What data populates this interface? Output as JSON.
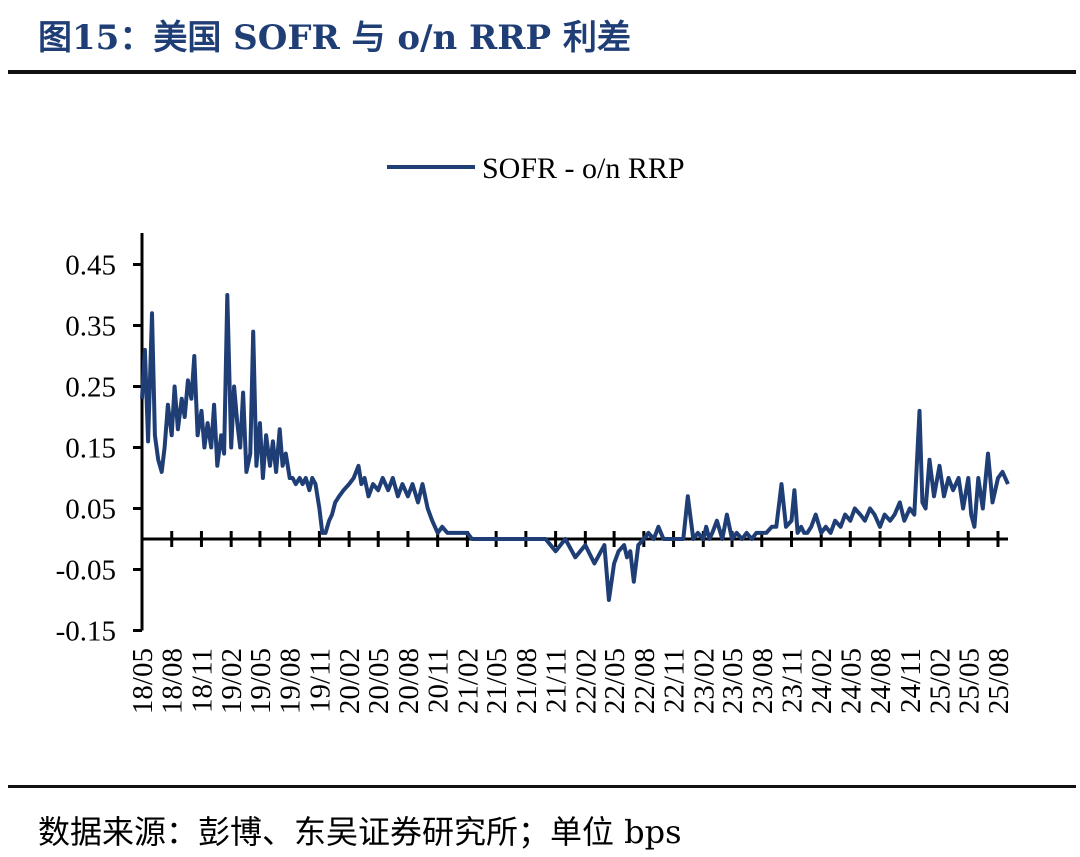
{
  "figure": {
    "title": "图15：美国 SOFR 与 o/n RRP 利差",
    "source": "数据来源：彭博、东吴证券研究所；单位 bps"
  },
  "chart_data": {
    "type": "line",
    "title": "",
    "xlabel": "",
    "ylabel": "",
    "ylim": [
      -0.15,
      0.5
    ],
    "y_ticks": [
      0.45,
      0.35,
      0.25,
      0.15,
      0.05,
      -0.05,
      -0.15
    ],
    "y_tick_labels": [
      "0.45",
      "0.35",
      "0.25",
      "0.15",
      "0.05",
      "-0.05",
      "-0.15"
    ],
    "x_range": [
      "2018-05",
      "2025-09"
    ],
    "x_tick_labels": [
      "18/05",
      "18/08",
      "18/11",
      "19/02",
      "19/05",
      "19/08",
      "19/11",
      "20/02",
      "20/05",
      "20/08",
      "20/11",
      "21/02",
      "21/05",
      "21/08",
      "21/11",
      "22/02",
      "22/05",
      "22/08",
      "22/11",
      "23/02",
      "23/05",
      "23/08",
      "23/11",
      "24/02",
      "24/05",
      "24/08",
      "24/11",
      "25/02",
      "25/05",
      "25/08"
    ],
    "legend_position": "top-center",
    "grid": false,
    "series_color": "#1f3e75",
    "series": [
      {
        "name": "SOFR - o/n RRP",
        "x": [
          "2018-05-01",
          "2018-05-10",
          "2018-05-20",
          "2018-06-01",
          "2018-06-10",
          "2018-06-20",
          "2018-07-01",
          "2018-07-10",
          "2018-07-20",
          "2018-08-01",
          "2018-08-10",
          "2018-08-20",
          "2018-09-01",
          "2018-09-10",
          "2018-09-20",
          "2018-10-01",
          "2018-10-10",
          "2018-10-20",
          "2018-11-01",
          "2018-11-10",
          "2018-11-20",
          "2018-12-01",
          "2018-12-10",
          "2018-12-20",
          "2019-01-01",
          "2019-01-10",
          "2019-01-20",
          "2019-02-01",
          "2019-02-10",
          "2019-02-20",
          "2019-03-01",
          "2019-03-10",
          "2019-03-20",
          "2019-04-01",
          "2019-04-10",
          "2019-04-20",
          "2019-05-01",
          "2019-05-10",
          "2019-05-20",
          "2019-06-01",
          "2019-06-10",
          "2019-06-20",
          "2019-07-01",
          "2019-07-10",
          "2019-07-20",
          "2019-08-01",
          "2019-08-10",
          "2019-08-20",
          "2019-09-01",
          "2019-09-10",
          "2019-09-20",
          "2019-10-01",
          "2019-10-10",
          "2019-10-20",
          "2019-11-01",
          "2019-11-10",
          "2019-11-20",
          "2019-12-01",
          "2019-12-10",
          "2019-12-20",
          "2020-01-01",
          "2020-01-15",
          "2020-02-01",
          "2020-02-15",
          "2020-03-01",
          "2020-03-10",
          "2020-03-20",
          "2020-04-01",
          "2020-04-15",
          "2020-05-01",
          "2020-05-15",
          "2020-06-01",
          "2020-06-15",
          "2020-07-01",
          "2020-07-15",
          "2020-08-01",
          "2020-08-15",
          "2020-09-01",
          "2020-09-15",
          "2020-10-01",
          "2020-10-15",
          "2020-11-01",
          "2020-11-15",
          "2020-12-01",
          "2020-12-15",
          "2021-01-01",
          "2021-01-15",
          "2021-02-01",
          "2021-02-15",
          "2021-03-01",
          "2021-03-15",
          "2021-04-01",
          "2021-05-01",
          "2021-06-01",
          "2021-07-01",
          "2021-08-01",
          "2021-09-01",
          "2021-10-01",
          "2021-11-01",
          "2021-12-01",
          "2022-01-01",
          "2022-02-01",
          "2022-03-01",
          "2022-04-01",
          "2022-04-15",
          "2022-05-01",
          "2022-05-15",
          "2022-06-01",
          "2022-06-10",
          "2022-06-20",
          "2022-07-01",
          "2022-07-15",
          "2022-08-01",
          "2022-08-15",
          "2022-09-01",
          "2022-09-15",
          "2022-10-01",
          "2022-10-15",
          "2022-11-01",
          "2022-11-15",
          "2022-12-01",
          "2022-12-15",
          "2023-01-01",
          "2023-01-15",
          "2023-02-01",
          "2023-02-10",
          "2023-02-20",
          "2023-03-01",
          "2023-03-15",
          "2023-04-01",
          "2023-04-15",
          "2023-05-01",
          "2023-05-15",
          "2023-06-01",
          "2023-06-15",
          "2023-07-01",
          "2023-07-15",
          "2023-08-01",
          "2023-08-15",
          "2023-09-01",
          "2023-09-15",
          "2023-10-01",
          "2023-10-15",
          "2023-11-01",
          "2023-11-10",
          "2023-11-20",
          "2023-12-01",
          "2023-12-10",
          "2023-12-20",
          "2024-01-01",
          "2024-01-15",
          "2024-02-01",
          "2024-02-15",
          "2024-03-01",
          "2024-03-15",
          "2024-04-01",
          "2024-04-15",
          "2024-05-01",
          "2024-05-15",
          "2024-06-01",
          "2024-06-15",
          "2024-07-01",
          "2024-07-15",
          "2024-08-01",
          "2024-08-15",
          "2024-09-01",
          "2024-09-15",
          "2024-10-01",
          "2024-10-15",
          "2024-11-01",
          "2024-11-15",
          "2024-12-01",
          "2024-12-10",
          "2024-12-20",
          "2025-01-01",
          "2025-01-15",
          "2025-02-01",
          "2025-02-15",
          "2025-03-01",
          "2025-03-15",
          "2025-04-01",
          "2025-04-15",
          "2025-05-01",
          "2025-05-10",
          "2025-05-20",
          "2025-06-01",
          "2025-06-15",
          "2025-07-01",
          "2025-07-15",
          "2025-08-01",
          "2025-08-15",
          "2025-09-01"
        ],
        "values": [
          0.23,
          0.31,
          0.16,
          0.37,
          0.17,
          0.13,
          0.11,
          0.15,
          0.22,
          0.17,
          0.25,
          0.18,
          0.23,
          0.2,
          0.26,
          0.23,
          0.3,
          0.17,
          0.21,
          0.15,
          0.19,
          0.15,
          0.22,
          0.12,
          0.17,
          0.14,
          0.4,
          0.15,
          0.25,
          0.19,
          0.15,
          0.24,
          0.11,
          0.14,
          0.34,
          0.12,
          0.19,
          0.1,
          0.17,
          0.12,
          0.16,
          0.11,
          0.18,
          0.12,
          0.14,
          0.1,
          0.1,
          0.09,
          0.1,
          0.09,
          0.1,
          0.08,
          0.1,
          0.09,
          0.05,
          0.01,
          0.01,
          0.03,
          0.04,
          0.06,
          0.07,
          0.08,
          0.09,
          0.1,
          0.12,
          0.09,
          0.1,
          0.07,
          0.09,
          0.08,
          0.1,
          0.08,
          0.1,
          0.07,
          0.09,
          0.07,
          0.09,
          0.06,
          0.09,
          0.05,
          0.03,
          0.01,
          0.02,
          0.01,
          0.01,
          0.01,
          0.01,
          0.01,
          0.0,
          0.0,
          0.0,
          0.0,
          0.0,
          0.0,
          0.0,
          0.0,
          0.0,
          0.0,
          -0.02,
          0.0,
          -0.03,
          -0.01,
          -0.04,
          -0.01,
          -0.1,
          -0.04,
          -0.02,
          -0.01,
          -0.03,
          -0.02,
          -0.07,
          -0.01,
          0.0,
          0.01,
          0.0,
          0.02,
          0.0,
          0.0,
          0.0,
          0.0,
          0.0,
          0.07,
          0.0,
          0.01,
          0.0,
          0.02,
          0.0,
          0.01,
          0.03,
          0.0,
          0.04,
          0.0,
          0.01,
          0.0,
          0.01,
          0.0,
          0.01,
          0.01,
          0.01,
          0.02,
          0.02,
          0.09,
          0.02,
          0.03,
          0.08,
          0.01,
          0.02,
          0.01,
          0.01,
          0.02,
          0.04,
          0.01,
          0.02,
          0.01,
          0.03,
          0.02,
          0.04,
          0.03,
          0.05,
          0.04,
          0.03,
          0.05,
          0.04,
          0.02,
          0.04,
          0.03,
          0.04,
          0.06,
          0.03,
          0.05,
          0.04,
          0.21,
          0.06,
          0.05,
          0.13,
          0.07,
          0.12,
          0.07,
          0.1,
          0.08,
          0.1,
          0.05,
          0.1,
          0.04,
          0.02,
          0.1,
          0.05,
          0.14,
          0.06,
          0.1,
          0.11,
          0.09
        ]
      }
    ]
  }
}
